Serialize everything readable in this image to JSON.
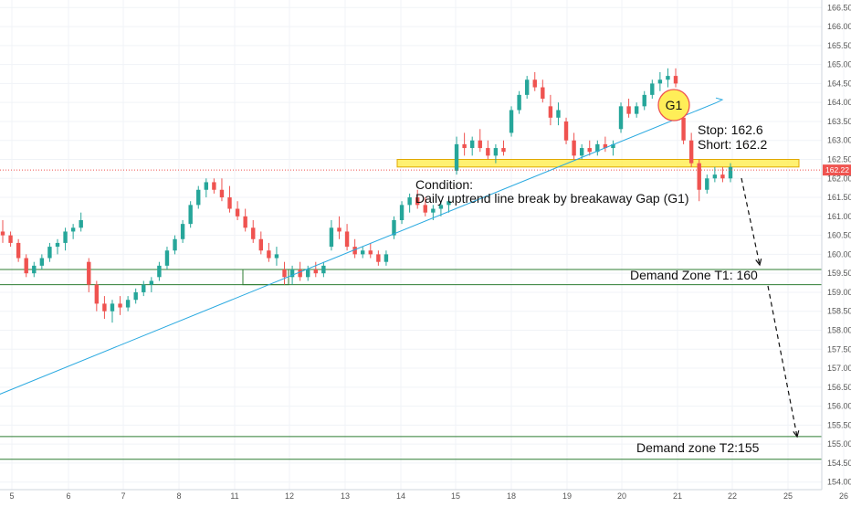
{
  "chart_data": {
    "type": "candlestick",
    "ylim": [
      153.8,
      166.7
    ],
    "x_ticks": [
      "5",
      "6",
      "7",
      "8",
      "11",
      "12",
      "13",
      "14",
      "15",
      "18",
      "19",
      "20",
      "21",
      "22",
      "25",
      "26"
    ],
    "y_ticks": [
      "154.00",
      "154.50",
      "155.00",
      "155.50",
      "156.00",
      "156.50",
      "157.00",
      "157.50",
      "158.00",
      "158.50",
      "159.00",
      "159.50",
      "160.00",
      "160.50",
      "161.00",
      "161.50",
      "162.00",
      "162.50",
      "163.00",
      "163.50",
      "164.00",
      "164.50",
      "165.00",
      "165.50",
      "166.00",
      "166.50"
    ],
    "current_price": "162.22",
    "current_price_value": 162.22,
    "up_color": "#26a69a",
    "down_color": "#ef5350",
    "candles": [
      {
        "o": 160.6,
        "h": 160.9,
        "l": 160.3,
        "c": 160.5
      },
      {
        "o": 160.5,
        "h": 160.6,
        "l": 160.2,
        "c": 160.3
      },
      {
        "o": 160.3,
        "h": 160.4,
        "l": 159.8,
        "c": 159.9
      },
      {
        "o": 159.9,
        "h": 160.0,
        "l": 159.4,
        "c": 159.5
      },
      {
        "o": 159.5,
        "h": 159.8,
        "l": 159.4,
        "c": 159.7
      },
      {
        "o": 159.7,
        "h": 160.0,
        "l": 159.6,
        "c": 159.9
      },
      {
        "o": 159.9,
        "h": 160.3,
        "l": 159.8,
        "c": 160.2
      },
      {
        "o": 160.2,
        "h": 160.4,
        "l": 160.0,
        "c": 160.3
      },
      {
        "o": 160.3,
        "h": 160.7,
        "l": 160.1,
        "c": 160.6
      },
      {
        "o": 160.6,
        "h": 160.8,
        "l": 160.4,
        "c": 160.7
      },
      {
        "o": 160.7,
        "h": 161.1,
        "l": 160.6,
        "c": 160.9
      },
      {
        "o": 159.8,
        "h": 159.9,
        "l": 159.0,
        "c": 159.2
      },
      {
        "o": 159.2,
        "h": 159.3,
        "l": 158.5,
        "c": 158.7
      },
      {
        "o": 158.7,
        "h": 158.9,
        "l": 158.3,
        "c": 158.5
      },
      {
        "o": 158.5,
        "h": 158.8,
        "l": 158.2,
        "c": 158.7
      },
      {
        "o": 158.7,
        "h": 158.9,
        "l": 158.4,
        "c": 158.6
      },
      {
        "o": 158.6,
        "h": 158.9,
        "l": 158.5,
        "c": 158.8
      },
      {
        "o": 158.8,
        "h": 159.1,
        "l": 158.7,
        "c": 159.0
      },
      {
        "o": 159.0,
        "h": 159.3,
        "l": 158.9,
        "c": 159.2
      },
      {
        "o": 159.2,
        "h": 159.4,
        "l": 159.0,
        "c": 159.3
      },
      {
        "o": 159.4,
        "h": 159.8,
        "l": 159.3,
        "c": 159.7
      },
      {
        "o": 159.7,
        "h": 160.2,
        "l": 159.6,
        "c": 160.1
      },
      {
        "o": 160.1,
        "h": 160.5,
        "l": 160.0,
        "c": 160.4
      },
      {
        "o": 160.4,
        "h": 160.9,
        "l": 160.3,
        "c": 160.8
      },
      {
        "o": 160.8,
        "h": 161.4,
        "l": 160.7,
        "c": 161.3
      },
      {
        "o": 161.3,
        "h": 161.8,
        "l": 161.2,
        "c": 161.7
      },
      {
        "o": 161.7,
        "h": 162.0,
        "l": 161.5,
        "c": 161.9
      },
      {
        "o": 161.9,
        "h": 162.0,
        "l": 161.6,
        "c": 161.7
      },
      {
        "o": 161.7,
        "h": 162.0,
        "l": 161.4,
        "c": 161.5
      },
      {
        "o": 161.5,
        "h": 161.8,
        "l": 161.1,
        "c": 161.2
      },
      {
        "o": 161.2,
        "h": 161.4,
        "l": 160.9,
        "c": 161.0
      },
      {
        "o": 161.0,
        "h": 161.2,
        "l": 160.6,
        "c": 160.7
      },
      {
        "o": 160.7,
        "h": 160.9,
        "l": 160.3,
        "c": 160.4
      },
      {
        "o": 160.4,
        "h": 160.6,
        "l": 160.0,
        "c": 160.1
      },
      {
        "o": 160.1,
        "h": 160.3,
        "l": 159.8,
        "c": 159.9
      },
      {
        "o": 159.9,
        "h": 160.2,
        "l": 159.7,
        "c": 160.0
      },
      {
        "o": 159.6,
        "h": 159.8,
        "l": 159.2,
        "c": 159.4
      },
      {
        "o": 159.4,
        "h": 159.7,
        "l": 159.2,
        "c": 159.6
      },
      {
        "o": 159.6,
        "h": 159.8,
        "l": 159.3,
        "c": 159.4
      },
      {
        "o": 159.4,
        "h": 159.7,
        "l": 159.3,
        "c": 159.6
      },
      {
        "o": 159.6,
        "h": 159.8,
        "l": 159.4,
        "c": 159.5
      },
      {
        "o": 159.5,
        "h": 159.8,
        "l": 159.4,
        "c": 159.7
      },
      {
        "o": 160.2,
        "h": 160.9,
        "l": 160.1,
        "c": 160.7
      },
      {
        "o": 160.7,
        "h": 161.0,
        "l": 160.4,
        "c": 160.6
      },
      {
        "o": 160.6,
        "h": 160.8,
        "l": 160.1,
        "c": 160.2
      },
      {
        "o": 160.2,
        "h": 160.4,
        "l": 159.9,
        "c": 160.0
      },
      {
        "o": 160.0,
        "h": 160.2,
        "l": 159.9,
        "c": 160.1
      },
      {
        "o": 160.1,
        "h": 160.3,
        "l": 159.9,
        "c": 160.0
      },
      {
        "o": 160.0,
        "h": 160.1,
        "l": 159.7,
        "c": 159.8
      },
      {
        "o": 159.8,
        "h": 160.1,
        "l": 159.7,
        "c": 160.0
      },
      {
        "o": 160.5,
        "h": 161.0,
        "l": 160.4,
        "c": 160.9
      },
      {
        "o": 160.9,
        "h": 161.4,
        "l": 160.8,
        "c": 161.3
      },
      {
        "o": 161.3,
        "h": 161.6,
        "l": 161.1,
        "c": 161.5
      },
      {
        "o": 161.5,
        "h": 161.7,
        "l": 161.2,
        "c": 161.3
      },
      {
        "o": 161.3,
        "h": 161.5,
        "l": 161.0,
        "c": 161.1
      },
      {
        "o": 161.1,
        "h": 161.3,
        "l": 160.9,
        "c": 161.2
      },
      {
        "o": 161.2,
        "h": 161.4,
        "l": 161.0,
        "c": 161.3
      },
      {
        "o": 161.3,
        "h": 161.5,
        "l": 161.1,
        "c": 161.4
      },
      {
        "o": 162.2,
        "h": 163.1,
        "l": 162.1,
        "c": 162.9
      },
      {
        "o": 162.9,
        "h": 163.2,
        "l": 162.6,
        "c": 162.8
      },
      {
        "o": 162.8,
        "h": 163.1,
        "l": 162.6,
        "c": 163.0
      },
      {
        "o": 163.0,
        "h": 163.3,
        "l": 162.7,
        "c": 162.8
      },
      {
        "o": 162.8,
        "h": 163.0,
        "l": 162.5,
        "c": 162.6
      },
      {
        "o": 162.6,
        "h": 162.9,
        "l": 162.4,
        "c": 162.8
      },
      {
        "o": 162.8,
        "h": 163.0,
        "l": 162.6,
        "c": 162.7
      },
      {
        "o": 163.2,
        "h": 163.9,
        "l": 163.1,
        "c": 163.8
      },
      {
        "o": 163.8,
        "h": 164.3,
        "l": 163.7,
        "c": 164.2
      },
      {
        "o": 164.2,
        "h": 164.7,
        "l": 164.1,
        "c": 164.6
      },
      {
        "o": 164.6,
        "h": 164.8,
        "l": 164.3,
        "c": 164.4
      },
      {
        "o": 164.4,
        "h": 164.6,
        "l": 164.0,
        "c": 164.1
      },
      {
        "o": 163.9,
        "h": 164.2,
        "l": 163.4,
        "c": 163.6
      },
      {
        "o": 163.6,
        "h": 164.0,
        "l": 163.4,
        "c": 163.8
      },
      {
        "o": 163.5,
        "h": 163.6,
        "l": 162.9,
        "c": 163.0
      },
      {
        "o": 163.0,
        "h": 163.2,
        "l": 162.5,
        "c": 162.6
      },
      {
        "o": 162.6,
        "h": 162.9,
        "l": 162.5,
        "c": 162.8
      },
      {
        "o": 162.8,
        "h": 163.0,
        "l": 162.6,
        "c": 162.7
      },
      {
        "o": 162.7,
        "h": 163.0,
        "l": 162.6,
        "c": 162.9
      },
      {
        "o": 162.9,
        "h": 163.1,
        "l": 162.7,
        "c": 162.8
      },
      {
        "o": 162.8,
        "h": 163.0,
        "l": 162.6,
        "c": 162.9
      },
      {
        "o": 163.3,
        "h": 164.0,
        "l": 163.2,
        "c": 163.9
      },
      {
        "o": 163.9,
        "h": 164.1,
        "l": 163.6,
        "c": 163.7
      },
      {
        "o": 163.7,
        "h": 164.0,
        "l": 163.6,
        "c": 163.9
      },
      {
        "o": 163.9,
        "h": 164.3,
        "l": 163.8,
        "c": 164.2
      },
      {
        "o": 164.2,
        "h": 164.6,
        "l": 164.1,
        "c": 164.5
      },
      {
        "o": 164.5,
        "h": 164.8,
        "l": 164.3,
        "c": 164.6
      },
      {
        "o": 164.6,
        "h": 164.9,
        "l": 164.4,
        "c": 164.7
      },
      {
        "o": 164.7,
        "h": 164.9,
        "l": 164.4,
        "c": 164.5
      },
      {
        "o": 163.6,
        "h": 163.8,
        "l": 162.9,
        "c": 163.0
      },
      {
        "o": 163.0,
        "h": 163.2,
        "l": 162.3,
        "c": 162.4
      },
      {
        "o": 162.4,
        "h": 162.5,
        "l": 161.4,
        "c": 161.7
      },
      {
        "o": 161.7,
        "h": 162.1,
        "l": 161.6,
        "c": 162.0
      },
      {
        "o": 162.0,
        "h": 162.3,
        "l": 161.9,
        "c": 162.1
      },
      {
        "o": 162.1,
        "h": 162.3,
        "l": 161.9,
        "c": 162.0
      },
      {
        "o": 162.0,
        "h": 162.4,
        "l": 161.9,
        "c": 162.3
      }
    ],
    "trendline": {
      "start": {
        "day": "5",
        "price": 156.2
      },
      "end": {
        "day": "22",
        "price": 164.0
      }
    },
    "resistance_band": {
      "low": 162.3,
      "high": 162.5,
      "color": "#ffee58"
    },
    "demand_zone_t1": {
      "low": 159.2,
      "high": 159.6,
      "color": "#2e7d32"
    },
    "demand_zone_t2": {
      "low": 154.6,
      "high": 155.2,
      "color": "#2e7d32"
    },
    "trendline_color": "#29a9e0",
    "g1_marker": {
      "label": "G1",
      "day": "21",
      "price": 164.2
    },
    "annotations": {
      "condition_title": "Condition:",
      "condition_text": "Daily uptrend line break by breakaway Gap (G1)",
      "stop": "Stop:  162.6",
      "short": "Short: 162.2",
      "demand_t1": "Demand Zone T1: 160",
      "demand_t2": "Demand zone T2:155"
    }
  }
}
